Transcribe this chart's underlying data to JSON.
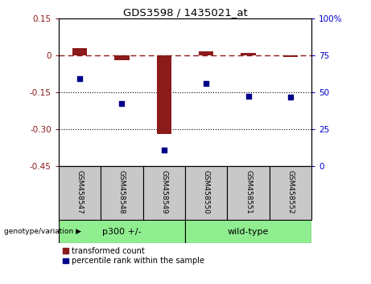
{
  "title": "GDS3598 / 1435021_at",
  "samples": [
    "GSM458547",
    "GSM458548",
    "GSM458549",
    "GSM458550",
    "GSM458551",
    "GSM458552"
  ],
  "red_values": [
    0.028,
    -0.018,
    -0.32,
    0.018,
    0.01,
    -0.008
  ],
  "blue_values_left": [
    -0.095,
    -0.195,
    -0.385,
    -0.115,
    -0.165,
    -0.168
  ],
  "ylim_left": [
    -0.45,
    0.15
  ],
  "ylim_right": [
    0,
    100
  ],
  "yticks_left": [
    0.15,
    0.0,
    -0.15,
    -0.3,
    -0.45
  ],
  "ytick_labels_left": [
    "0.15",
    "0",
    "-0.15",
    "-0.30",
    "-0.45"
  ],
  "yticks_right": [
    100,
    75,
    50,
    25,
    0
  ],
  "ytick_labels_right": [
    "100%",
    "75",
    "50",
    "25",
    "0"
  ],
  "hlines": [
    -0.15,
    -0.3
  ],
  "group1_label": "p300 +/-",
  "group2_label": "wild-type",
  "group1_indices": [
    0,
    1,
    2
  ],
  "group2_indices": [
    3,
    4,
    5
  ],
  "legend_red": "transformed count",
  "legend_blue": "percentile rank within the sample",
  "genotype_label": "genotype/variation",
  "group_color": "#90EE90",
  "sample_box_color": "#C8C8C8",
  "bar_color": "#8B1A1A",
  "dot_color": "#00008B",
  "dashed_line_color": "#8B1A1A",
  "dashed_line_y": 0.0,
  "tick_color_left": "#8B1A1A",
  "tick_color_right": "#0000CC",
  "bar_width": 0.35
}
